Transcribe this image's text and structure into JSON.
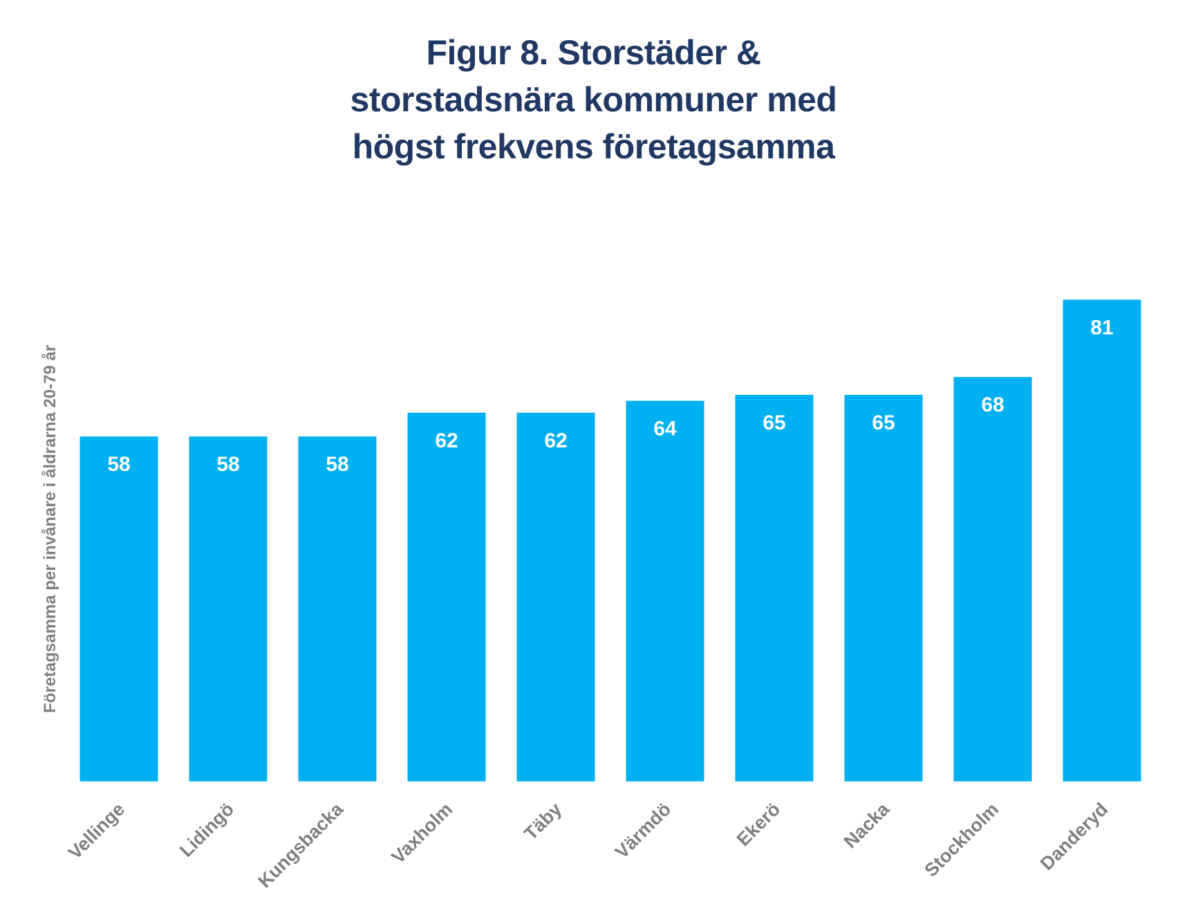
{
  "chart_data": {
    "type": "bar",
    "title_lines": [
      "Figur 8. Storstäder &",
      "storstadsnära kommuner med",
      "högst frekvens företagsamma"
    ],
    "ylabel": "Företagsamma per invånare i åldrarna 20-79 år",
    "xlabel": "",
    "categories": [
      "Vellinge",
      "Lidingö",
      "Kungsbacka",
      "Vaxholm",
      "Täby",
      "Värmdö",
      "Ekerö",
      "Nacka",
      "Stockholm",
      "Danderyd"
    ],
    "values": [
      58,
      58,
      58,
      62,
      62,
      64,
      65,
      65,
      68,
      81
    ],
    "labels": [
      "58",
      "58",
      "58",
      "62",
      "62",
      "64",
      "65",
      "65",
      "68",
      "81"
    ],
    "ylim": [
      0,
      84
    ],
    "bar_color": "#00b0f0",
    "title_color": "#1f3864",
    "label_color": "#7f7f7f",
    "grid": false,
    "legend": "none"
  }
}
